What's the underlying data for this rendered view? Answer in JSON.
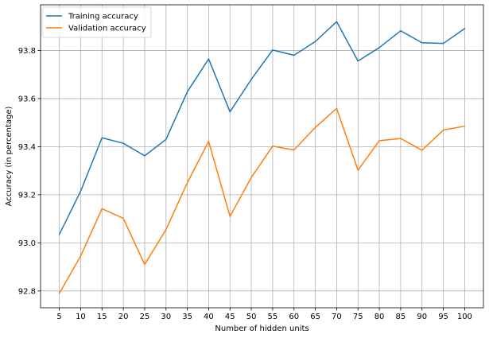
{
  "chart_data": {
    "type": "line",
    "title": "",
    "xlabel": "Number of hidden units",
    "ylabel": "Accuracy (in percentage)",
    "x": [
      5,
      10,
      15,
      20,
      25,
      30,
      35,
      40,
      45,
      50,
      55,
      60,
      65,
      70,
      75,
      80,
      85,
      90,
      95,
      100
    ],
    "x_tick_labels": [
      "5",
      "10",
      "15",
      "20",
      "25",
      "30",
      "35",
      "40",
      "45",
      "50",
      "55",
      "60",
      "65",
      "70",
      "75",
      "80",
      "85",
      "90",
      "95",
      "100"
    ],
    "xlim": [
      0.6,
      104.4
    ],
    "ylim": [
      92.73,
      93.99
    ],
    "y_ticks": [
      92.8,
      93.0,
      93.2,
      93.4,
      93.6,
      93.8
    ],
    "y_tick_labels": [
      "92.8",
      "93.0",
      "93.2",
      "93.4",
      "93.6",
      "93.8"
    ],
    "grid": true,
    "legend_position": "top-left",
    "series": [
      {
        "name": "Training accuracy",
        "color": "#1f77b4",
        "values": [
          93.035,
          93.215,
          93.437,
          93.414,
          93.362,
          93.43,
          93.628,
          93.765,
          93.545,
          93.68,
          93.802,
          93.78,
          93.837,
          93.92,
          93.756,
          93.812,
          93.882,
          93.832,
          93.829,
          93.891
        ]
      },
      {
        "name": "Validation accuracy",
        "color": "#ff7f0e",
        "values": [
          92.79,
          92.945,
          93.142,
          93.102,
          92.91,
          93.055,
          93.25,
          93.422,
          93.11,
          93.272,
          93.402,
          93.386,
          93.48,
          93.559,
          93.302,
          93.425,
          93.434,
          93.385,
          93.469,
          93.485
        ]
      }
    ]
  }
}
